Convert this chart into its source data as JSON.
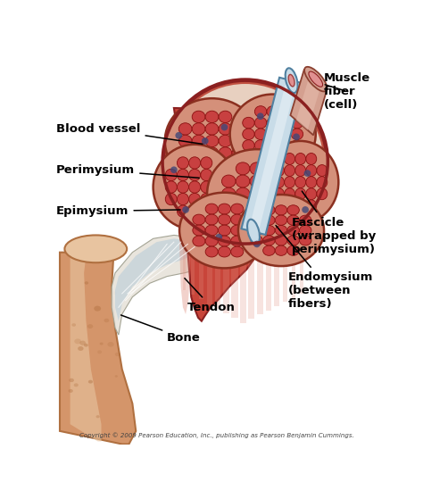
{
  "labels": {
    "muscle_fiber": "Muscle\nfiber\n(cell)",
    "blood_vessel": "Blood vessel",
    "perimysium": "Perimysium",
    "epimysium": "Epimysium",
    "fascicle": "Fascicle\n(wrapped by\nperimysium)",
    "endomysium": "Endomysium\n(between\nfibers)",
    "tendon": "Tendon",
    "bone": "Bone"
  },
  "copyright": "Copyright © 2009 Pearson Education, Inc., publishing as Pearson Benjamin Cummings.",
  "bg_color": "#ffffff",
  "muscle_red": "#c8453a",
  "muscle_mid": "#d4645a",
  "muscle_light": "#e09080",
  "muscle_pale": "#e8b0a0",
  "fascicle_fill": "#d4907a",
  "fascicle_border": "#8b3020",
  "epi_fill": "#c05040",
  "epi_border": "#8b2020",
  "bone_main": "#d4956a",
  "bone_light": "#e8c4a0",
  "bone_dark": "#b07040",
  "tendon_white": "#e8e4dc",
  "tendon_blue": "#b0c8d8",
  "bv_blue": "#c8dce8",
  "bv_pink": "#e09090",
  "fiber_red": "#c84040",
  "fiber_dark": "#8b1010",
  "cross_bg": "#e8d0c0"
}
